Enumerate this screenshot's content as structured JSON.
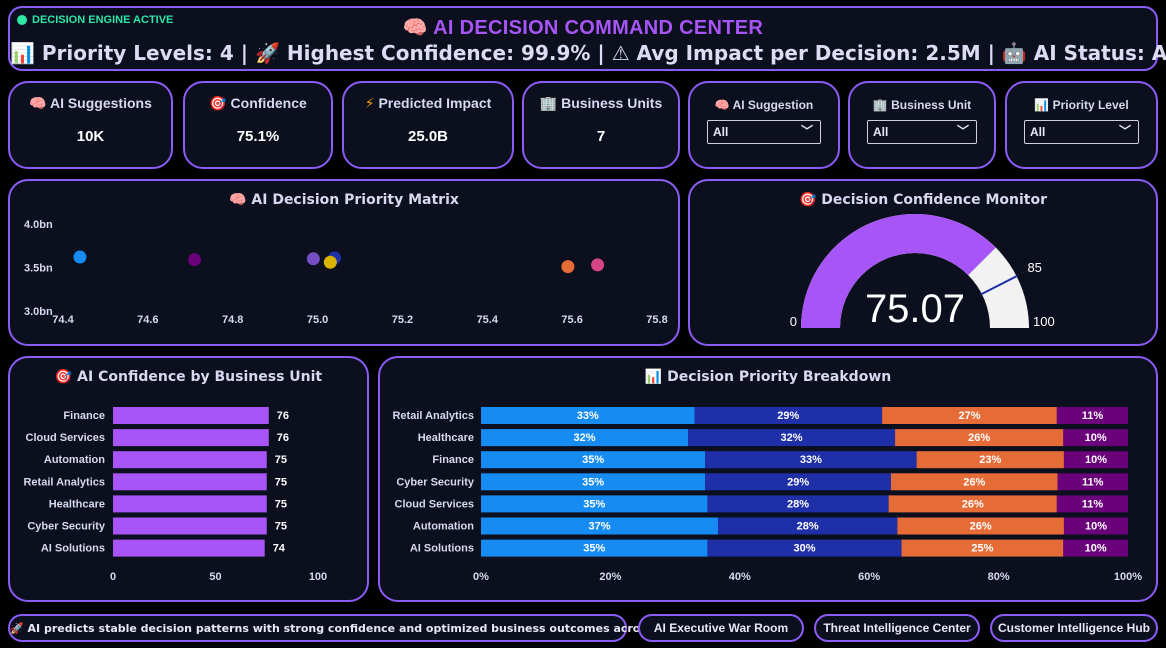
{
  "header": {
    "status_badge": "DECISION ENGINE ACTIVE",
    "title_icon": "🧠",
    "title": "AI DECISION COMMAND CENTER",
    "subtitle": "📊 Priority Levels: 4 | 🚀 Highest Confidence: 99.9% | ⚠ Avg Impact per Decision: 2.5M | 🤖 AI Status: Active"
  },
  "kpis": [
    {
      "icon": "🧠",
      "label": "AI Suggestions",
      "value": "10K"
    },
    {
      "icon": "🎯",
      "label": "Confidence",
      "value": "75.1%"
    },
    {
      "icon": "⚡",
      "label": "Predicted Impact",
      "value": "25.0B"
    },
    {
      "icon": "🏢",
      "label": "Business Units",
      "value": "7"
    }
  ],
  "filters": [
    {
      "icon": "🧠",
      "label": "AI Suggestion",
      "selected": "All"
    },
    {
      "icon": "🏢",
      "label": "Business Unit",
      "selected": "All"
    },
    {
      "icon": "📊",
      "label": "Priority Level",
      "selected": "All"
    }
  ],
  "panels": {
    "matrix_title": "🧠 AI Decision Priority Matrix",
    "gauge_title": "🎯 Decision Confidence Monitor",
    "confidence_title": "🎯 AI Confidence by Business Unit",
    "breakdown_title": "📊 Decision Priority Breakdown"
  },
  "colors": {
    "accent": "#a855f7",
    "border": "#8b5cf6",
    "bar": "#a855f7",
    "seg1": "#168cf3",
    "seg2": "#1e2fa8",
    "seg3": "#e66c37",
    "seg4": "#6b007b"
  },
  "chart_data": [
    {
      "type": "scatter",
      "title": "AI Decision Priority Matrix",
      "xlim": [
        74.4,
        75.8
      ],
      "x_ticks": [
        "74.4",
        "74.6",
        "74.8",
        "75.0",
        "75.2",
        "75.4",
        "75.6",
        "75.8"
      ],
      "ylim": [
        3.0,
        4.0
      ],
      "y_ticks": [
        "4.0bn",
        "3.5bn",
        "3.0bn"
      ],
      "points": [
        {
          "x": 74.44,
          "y": 3.62,
          "color": "#168cf3"
        },
        {
          "x": 74.71,
          "y": 3.59,
          "color": "#6b007b"
        },
        {
          "x": 74.99,
          "y": 3.6,
          "color": "#744ec2"
        },
        {
          "x": 75.04,
          "y": 3.61,
          "color": "#1e2fa8"
        },
        {
          "x": 75.03,
          "y": 3.56,
          "color": "#d9b300"
        },
        {
          "x": 75.59,
          "y": 3.51,
          "color": "#e66c37"
        },
        {
          "x": 75.66,
          "y": 3.53,
          "color": "#d64586"
        }
      ]
    },
    {
      "type": "gauge",
      "title": "Decision Confidence Monitor",
      "value": 75.07,
      "value_label": "75.07",
      "min": 0,
      "min_label": "0",
      "max": 100,
      "max_label": "100",
      "target": 85,
      "target_label": "85"
    },
    {
      "type": "bar",
      "orientation": "horizontal",
      "title": "AI Confidence by Business Unit",
      "categories": [
        "Finance",
        "Cloud Services",
        "Automation",
        "Retail Analytics",
        "Healthcare",
        "Cyber Security",
        "AI Solutions"
      ],
      "values": [
        76,
        76,
        75,
        75,
        75,
        75,
        74
      ],
      "value_labels": [
        "76",
        "76",
        "75",
        "75",
        "75",
        "75",
        "74"
      ],
      "xlim": [
        0,
        100
      ],
      "x_ticks": [
        "0",
        "50",
        "100"
      ]
    },
    {
      "type": "bar",
      "orientation": "horizontal",
      "stacked": "100%",
      "title": "Decision Priority Breakdown",
      "categories": [
        "Retail Analytics",
        "Healthcare",
        "Finance",
        "Cyber Security",
        "Cloud Services",
        "Automation",
        "AI Solutions"
      ],
      "series": [
        {
          "values": [
            33,
            32,
            35,
            35,
            35,
            37,
            35
          ],
          "labels": [
            "33%",
            "32%",
            "35%",
            "35%",
            "35%",
            "37%",
            "35%"
          ]
        },
        {
          "values": [
            29,
            32,
            33,
            29,
            28,
            28,
            30
          ],
          "labels": [
            "29%",
            "32%",
            "33%",
            "29%",
            "28%",
            "28%",
            "30%"
          ]
        },
        {
          "values": [
            27,
            26,
            23,
            26,
            26,
            26,
            25
          ],
          "labels": [
            "27%",
            "26%",
            "23%",
            "26%",
            "26%",
            "26%",
            "25%"
          ]
        },
        {
          "values": [
            11,
            10,
            10,
            11,
            11,
            10,
            10
          ],
          "labels": [
            "11%",
            "10%",
            "10%",
            "11%",
            "11%",
            "10%",
            "10%"
          ]
        }
      ],
      "x_ticks": [
        "0%",
        "20%",
        "40%",
        "60%",
        "80%",
        "100%"
      ]
    }
  ],
  "footer": {
    "insight": "🚀 AI predicts stable decision patterns with strong confidence and optimized business outcomes across strategic units.",
    "nav": [
      "AI Executive War Room",
      "Threat Intelligence Center",
      "Customer Intelligence Hub"
    ]
  }
}
